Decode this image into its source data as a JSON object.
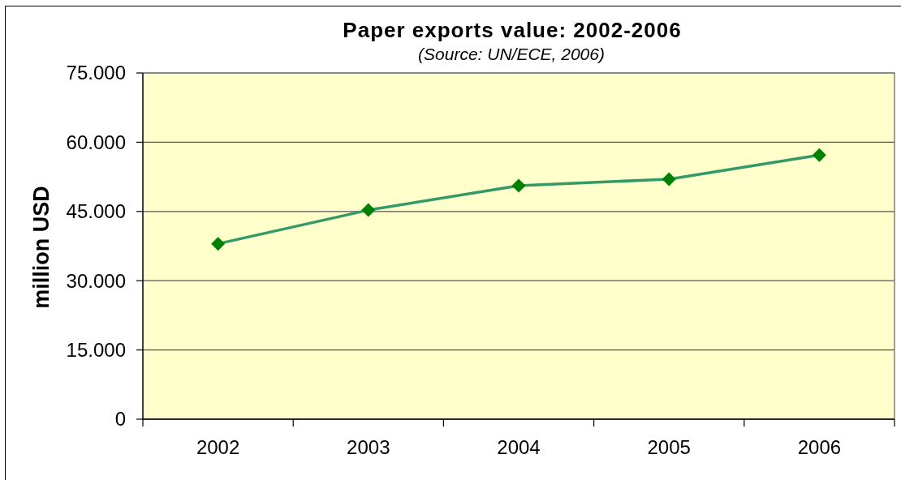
{
  "chart_data": {
    "type": "line",
    "title": "Paper exports value: 2002-2006",
    "subtitle": "(Source: UN/ECE, 2006)",
    "ylabel": "million USD",
    "categories": [
      "2002",
      "2003",
      "2004",
      "2005",
      "2006"
    ],
    "series": [
      {
        "color": "#339966",
        "colors": [
          "#008000",
          "#008000",
          "#008000",
          "#008000",
          "#008000"
        ],
        "values": [
          38000,
          45300,
          50600,
          52000,
          57200
        ]
      }
    ],
    "ylim": [
      0,
      75000
    ],
    "yticks": [
      0,
      {
        "value": 15000,
        "label": "15.000"
      },
      {
        "value": 30000,
        "label": "30.000"
      },
      {
        "value": 45000,
        "label": "45.000"
      },
      {
        "value": 60000,
        "label": "60.000"
      },
      {
        "value": 75000,
        "label": "75.000"
      }
    ],
    "grid": "y",
    "marker": "diamond",
    "line_style": "solid"
  }
}
